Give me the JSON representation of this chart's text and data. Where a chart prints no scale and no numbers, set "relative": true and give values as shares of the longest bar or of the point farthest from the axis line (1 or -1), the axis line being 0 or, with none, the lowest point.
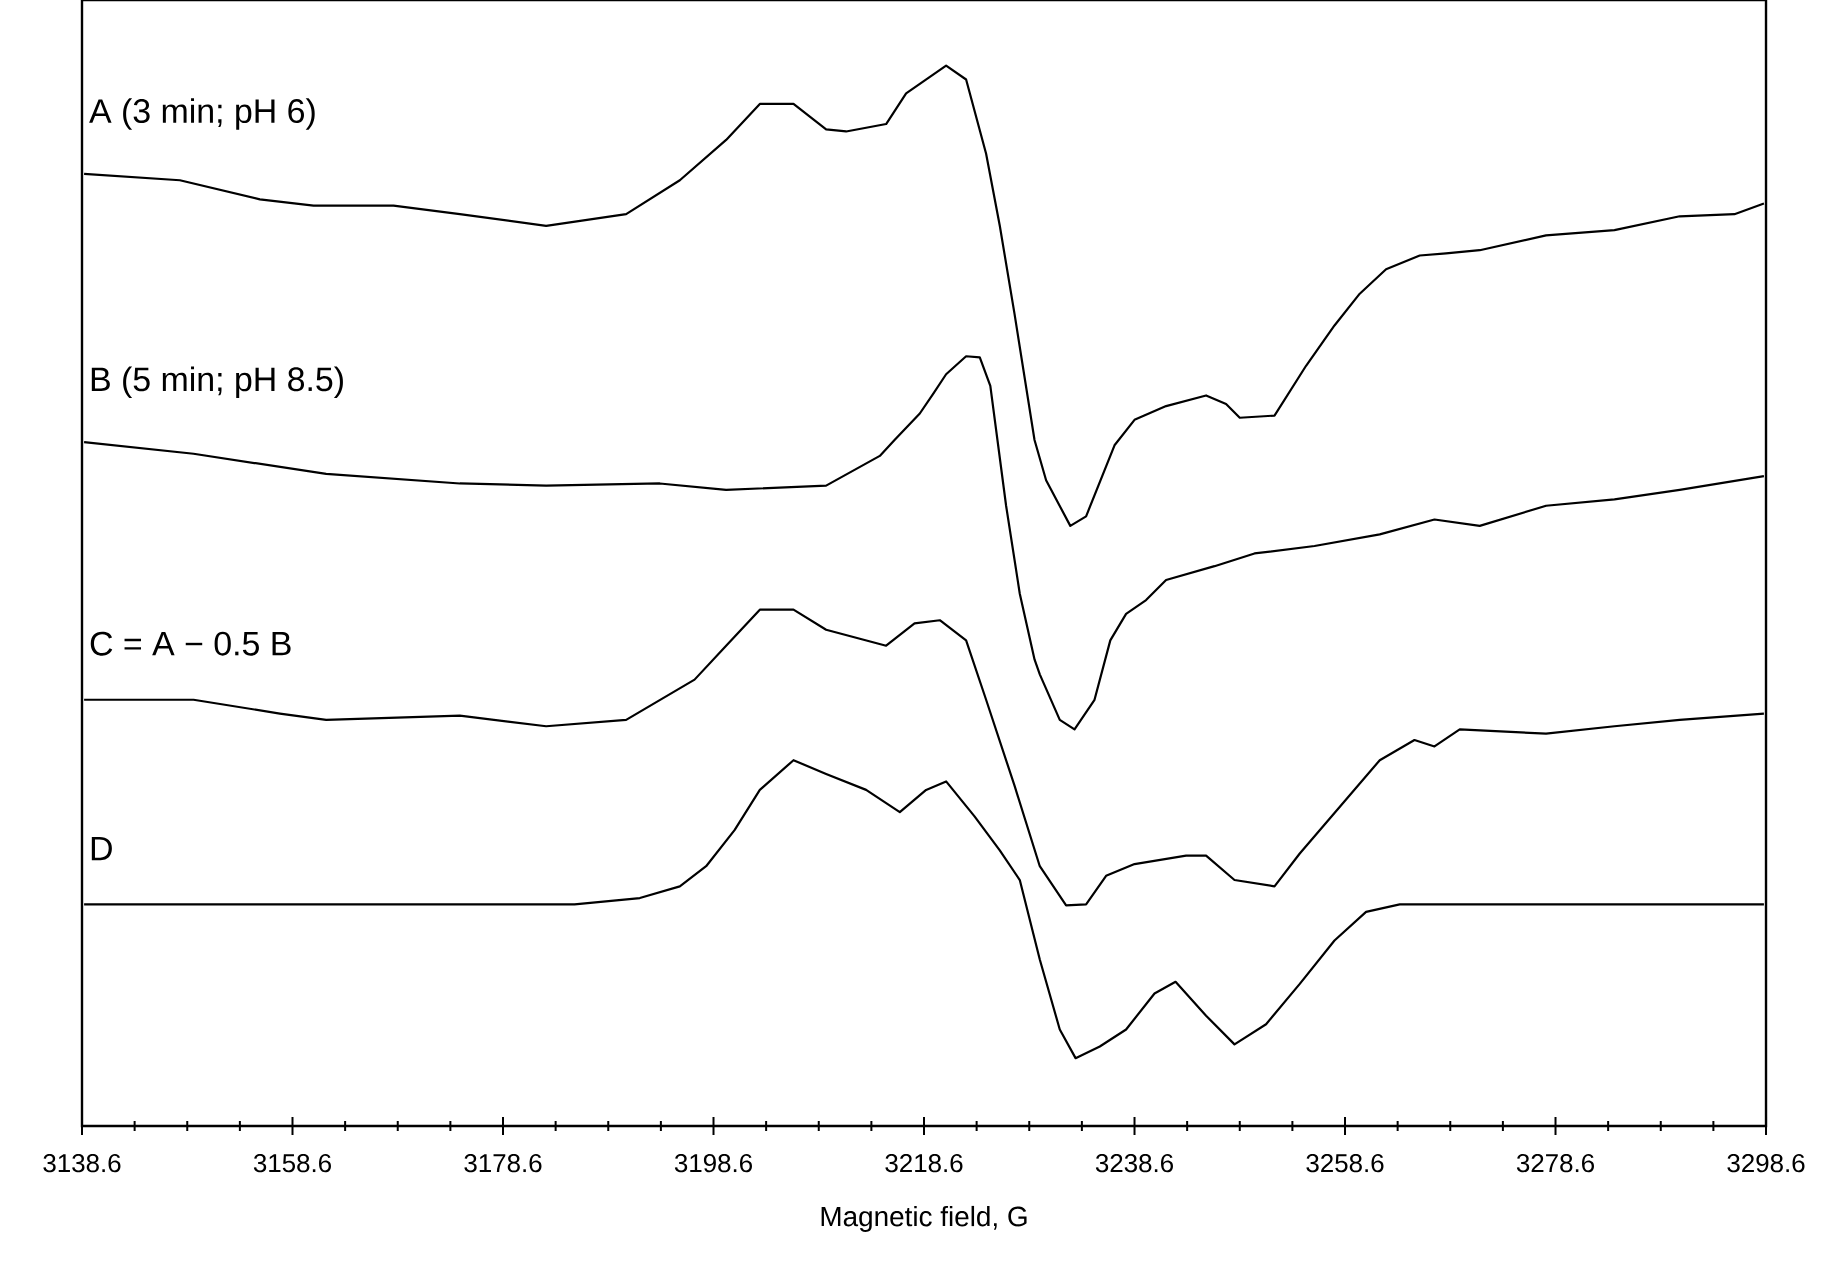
{
  "chart_data": {
    "type": "line",
    "relative": true,
    "xlabel": "Magnetic field, G",
    "xlim": [
      3138.6,
      3298.6
    ],
    "xticks": [
      3138.6,
      3158.6,
      3178.6,
      3198.6,
      3218.6,
      3238.6,
      3258.6,
      3278.6,
      3298.6
    ],
    "series": [
      {
        "name": "A (3 min; pH 6)",
        "color": "#000000",
        "x": [
          3138.8,
          3147.9,
          3155.5,
          3160.6,
          3168.2,
          3174.5,
          3182.7,
          3190.3,
          3195.4,
          3199.8,
          3203.0,
          3206.2,
          3209.3,
          3211.2,
          3215.0,
          3216.9,
          3220.7,
          3222.6,
          3224.5,
          3225.8,
          3227.2,
          3229.1,
          3230.2,
          3232.5,
          3234.0,
          3236.7,
          3238.6,
          3241.6,
          3245.4,
          3247.3,
          3248.6,
          3251.9,
          3254.9,
          3257.6,
          3260.0,
          3262.5,
          3265.7,
          3268.2,
          3271.4,
          3277.7,
          3284.2,
          3290.4,
          3295.6,
          3298.4
        ],
        "values": [
          0.898,
          0.892,
          0.874,
          0.868,
          0.868,
          0.86,
          0.849,
          0.86,
          0.892,
          0.93,
          0.964,
          0.964,
          0.94,
          0.938,
          0.945,
          0.974,
          1.0,
          0.987,
          0.917,
          0.849,
          0.766,
          0.647,
          0.609,
          0.566,
          0.575,
          0.642,
          0.666,
          0.679,
          0.689,
          0.681,
          0.668,
          0.67,
          0.717,
          0.755,
          0.785,
          0.808,
          0.821,
          0.823,
          0.826,
          0.84,
          0.845,
          0.858,
          0.86,
          0.87
        ]
      },
      {
        "name": "B (5 min; pH 8.5)",
        "color": "#000000",
        "x": [
          3138.8,
          3149.2,
          3161.8,
          3174.5,
          3182.7,
          3193.5,
          3199.8,
          3209.3,
          3214.4,
          3215.8,
          3218.2,
          3219.5,
          3220.7,
          3222.6,
          3223.9,
          3224.9,
          3226.4,
          3227.7,
          3229.1,
          3229.6,
          3231.5,
          3232.9,
          3234.8,
          3236.3,
          3237.8,
          3239.7,
          3241.6,
          3246.2,
          3250.0,
          3255.7,
          3261.9,
          3267.1,
          3271.4,
          3277.7,
          3284.2,
          3290.4,
          3298.4
        ],
        "values": [
          0.645,
          0.634,
          0.615,
          0.606,
          0.604,
          0.606,
          0.6,
          0.604,
          0.632,
          0.647,
          0.672,
          0.691,
          0.709,
          0.726,
          0.725,
          0.698,
          0.585,
          0.502,
          0.44,
          0.426,
          0.383,
          0.374,
          0.402,
          0.458,
          0.483,
          0.496,
          0.515,
          0.528,
          0.54,
          0.547,
          0.558,
          0.572,
          0.566,
          0.585,
          0.591,
          0.6,
          0.613
        ]
      },
      {
        "name": "C = A − 0.5 B",
        "color": "#000000",
        "x": [
          3138.8,
          3149.2,
          3157.4,
          3161.8,
          3174.5,
          3182.7,
          3190.3,
          3196.8,
          3199.8,
          3203.0,
          3206.2,
          3209.3,
          3215.0,
          3217.7,
          3220.1,
          3222.6,
          3224.5,
          3227.2,
          3229.6,
          3232.1,
          3234.0,
          3235.9,
          3238.6,
          3243.5,
          3245.4,
          3248.1,
          3251.9,
          3254.3,
          3258.7,
          3261.9,
          3265.2,
          3267.1,
          3269.5,
          3277.7,
          3284.2,
          3290.4,
          3298.4
        ],
        "values": [
          0.402,
          0.402,
          0.389,
          0.383,
          0.387,
          0.377,
          0.383,
          0.421,
          0.453,
          0.487,
          0.487,
          0.468,
          0.453,
          0.474,
          0.477,
          0.458,
          0.402,
          0.321,
          0.245,
          0.208,
          0.209,
          0.236,
          0.247,
          0.255,
          0.255,
          0.232,
          0.226,
          0.257,
          0.308,
          0.345,
          0.364,
          0.358,
          0.374,
          0.37,
          0.377,
          0.383,
          0.389
        ]
      },
      {
        "name": "D",
        "color": "#000000",
        "x": [
          3138.8,
          3185.4,
          3191.6,
          3195.4,
          3197.9,
          3200.6,
          3203.0,
          3206.2,
          3209.3,
          3213.1,
          3216.3,
          3218.8,
          3220.7,
          3223.4,
          3225.8,
          3227.7,
          3229.6,
          3231.5,
          3233.0,
          3235.3,
          3237.8,
          3240.5,
          3242.5,
          3245.4,
          3248.1,
          3251.1,
          3254.3,
          3257.6,
          3260.6,
          3263.8,
          3298.4
        ],
        "values": [
          0.209,
          0.209,
          0.215,
          0.226,
          0.245,
          0.279,
          0.317,
          0.345,
          0.332,
          0.317,
          0.296,
          0.317,
          0.325,
          0.292,
          0.26,
          0.232,
          0.157,
          0.091,
          0.064,
          0.075,
          0.091,
          0.125,
          0.136,
          0.104,
          0.077,
          0.096,
          0.134,
          0.175,
          0.202,
          0.209,
          0.209
        ]
      }
    ]
  }
}
